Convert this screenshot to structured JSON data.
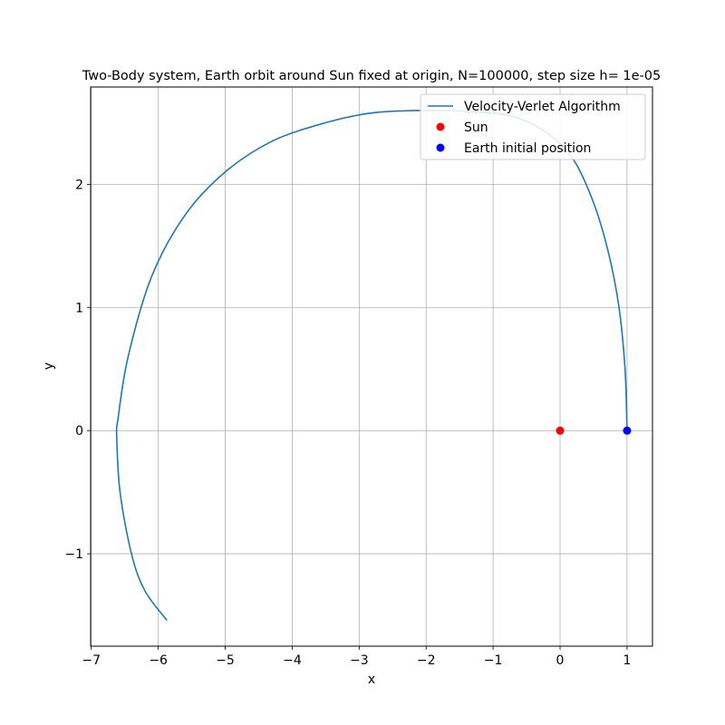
{
  "chart_data": {
    "type": "line",
    "title": "Two-Body system, Earth orbit around Sun fixed at origin, N=100000, step size h= 1e-05",
    "xlabel": "x",
    "ylabel": "y",
    "xlim": [
      -7.01,
      1.38
    ],
    "ylim": [
      -1.75,
      2.79
    ],
    "xticks": [
      -7,
      -6,
      -5,
      -4,
      -3,
      -2,
      -1,
      0,
      1
    ],
    "xtick_labels": [
      "−7",
      "−6",
      "−5",
      "−4",
      "−3",
      "−2",
      "−1",
      "0",
      "1"
    ],
    "yticks": [
      -1,
      0,
      1,
      2
    ],
    "ytick_labels": [
      "−1",
      "0",
      "1",
      "2"
    ],
    "grid": true,
    "legend_position": "top-right",
    "series": [
      {
        "name": "Velocity-Verlet Algorithm",
        "kind": "line",
        "color": "#1f77b4",
        "x": [
          1.0,
          0.97,
          0.88,
          0.72,
          0.5,
          0.2,
          -0.2,
          -0.7,
          -1.3,
          -2.0,
          -2.8,
          -3.5,
          -4.3,
          -5.0,
          -5.6,
          -6.1,
          -6.45,
          -6.6,
          -6.62,
          -6.57,
          -6.4,
          -6.2,
          -5.87
        ],
        "y": [
          0.0,
          0.5,
          1.0,
          1.45,
          1.85,
          2.2,
          2.42,
          2.55,
          2.59,
          2.6,
          2.58,
          2.5,
          2.35,
          2.1,
          1.75,
          1.25,
          0.6,
          0.1,
          -0.05,
          -0.5,
          -1.0,
          -1.3,
          -1.54
        ]
      },
      {
        "name": "Sun",
        "kind": "point",
        "color": "#ff0000",
        "x": [
          0
        ],
        "y": [
          0
        ]
      },
      {
        "name": "Earth initial position",
        "kind": "point",
        "color": "#0000ff",
        "x": [
          1
        ],
        "y": [
          0
        ]
      }
    ]
  }
}
